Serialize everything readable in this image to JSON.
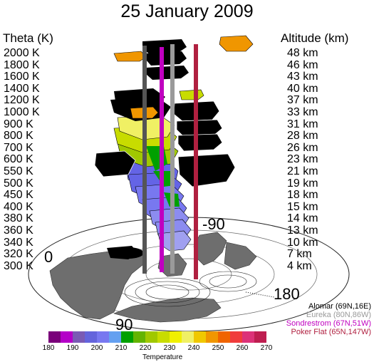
{
  "title": "25 January 2009",
  "theta_axis": {
    "label": "Theta (K)",
    "levels": [
      "2000 K",
      "1800 K",
      "1600 K",
      "1400 K",
      "1200 K",
      "1000 K",
      "900 K",
      "800 K",
      "700 K",
      "600 K",
      "550 K",
      "500 K",
      "450 K",
      "400 K",
      "380 K",
      "360 K",
      "340 K",
      "320 K",
      "300 K"
    ]
  },
  "altitude_axis": {
    "label": "Altitude (km)",
    "levels": [
      "48 km",
      "46 km",
      "43 km",
      "40 km",
      "37 km",
      "33 km",
      "31 km",
      "28 km",
      "26 km",
      "23 km",
      "21 km",
      "19 km",
      "18 km",
      "15 km",
      "14 km",
      "13 km",
      "10 km",
      "7 km",
      "4 km"
    ]
  },
  "longitude_labels": {
    "zero": "0",
    "minus90": "-90",
    "p180": "180",
    "p90": "90"
  },
  "stations": [
    {
      "label": "Alomar (69N,16E)",
      "color": "#000000"
    },
    {
      "label": "Eureka (80N,86W)",
      "color": "#9a9a9a"
    },
    {
      "label": "Sondrestrom (67N,51W)",
      "color": "#c000c0"
    },
    {
      "label": "Poker Flat (65N,147W)",
      "color": "#b02040"
    }
  ],
  "colorbar": {
    "label": "Temperature",
    "ticks": [
      "180",
      "190",
      "200",
      "210",
      "220",
      "230",
      "240",
      "250",
      "260",
      "270"
    ],
    "colors": [
      "#7a007a",
      "#b400c8",
      "#7a5ab4",
      "#6464dc",
      "#7878f0",
      "#64a0f0",
      "#00a000",
      "#64b400",
      "#a0c800",
      "#c8dc00",
      "#f0f000",
      "#f0f064",
      "#f0c800",
      "#f09600",
      "#f06400",
      "#f03c3c",
      "#dc3278",
      "#be1e50"
    ]
  }
}
